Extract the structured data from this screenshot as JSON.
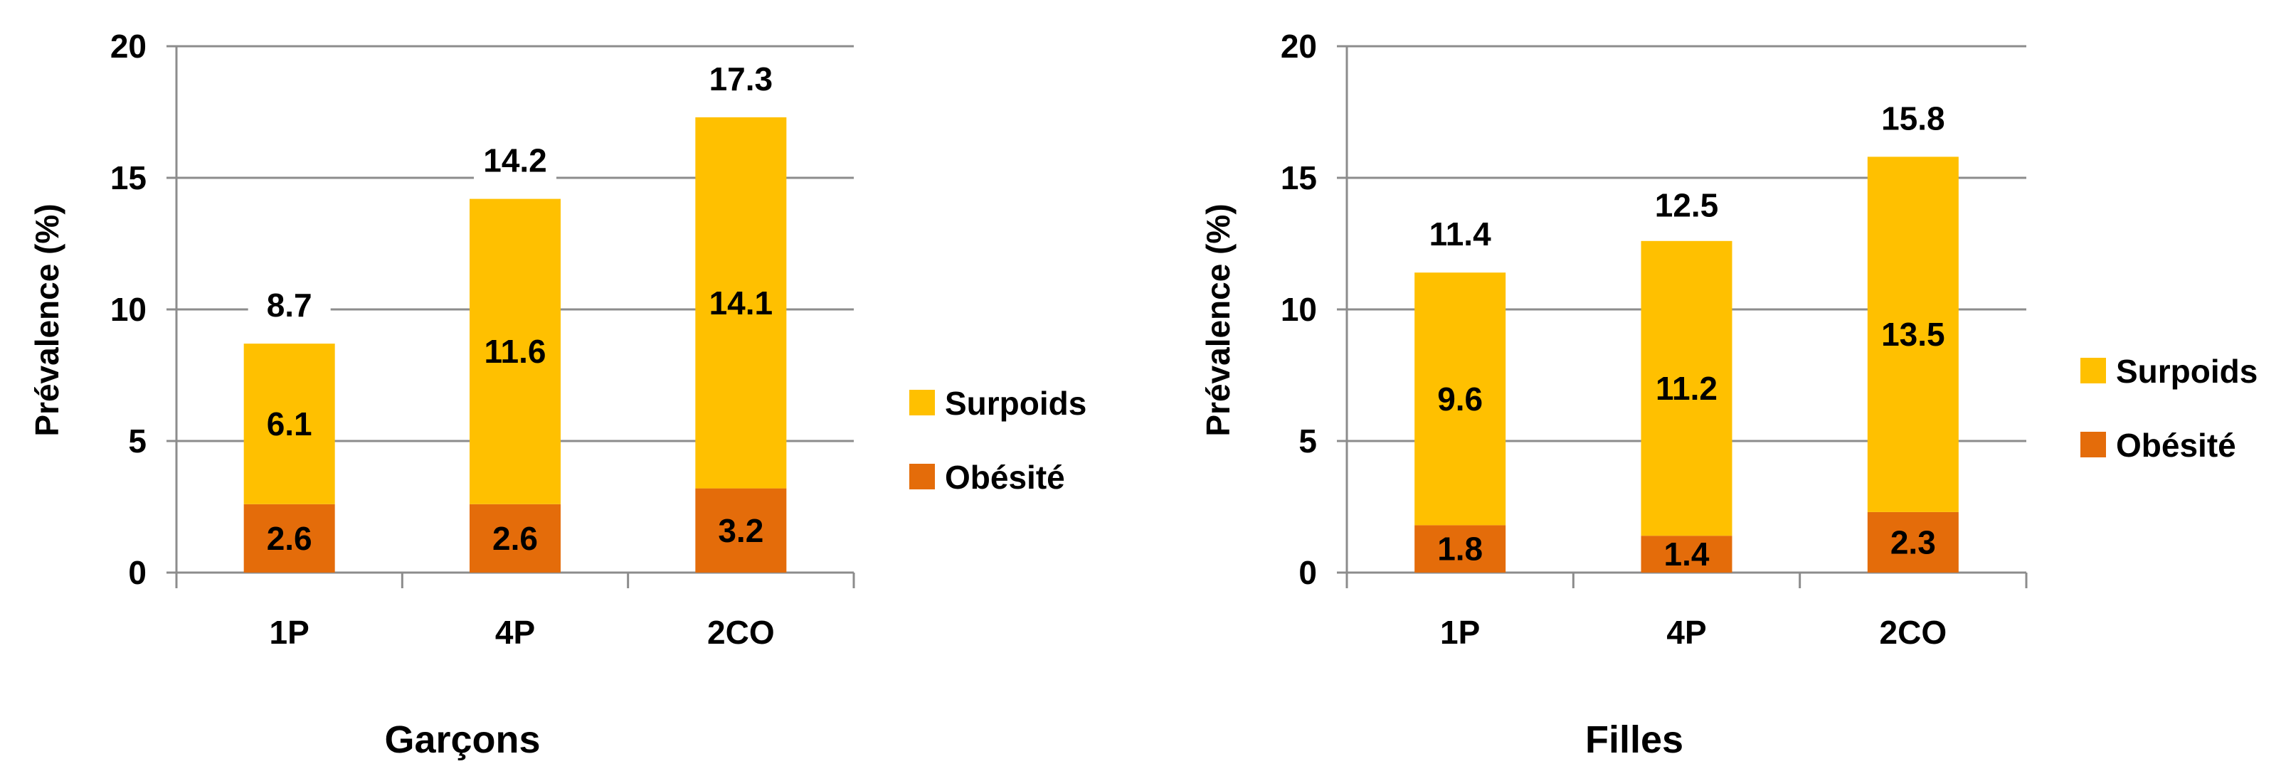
{
  "chart_data": [
    {
      "type": "bar",
      "stacked": true,
      "title": "Garçons",
      "ylabel": "Prévalence (%)",
      "xlabel": "",
      "categories": [
        "1P",
        "4P",
        "2CO"
      ],
      "ylim": [
        0,
        20
      ],
      "yticks": [
        0,
        5,
        10,
        15,
        20
      ],
      "grid": true,
      "legend": "right",
      "series": [
        {
          "name": "Obésité",
          "values": [
            2.6,
            2.6,
            3.2
          ],
          "color": "#E46C0A"
        },
        {
          "name": "Surpoids",
          "values": [
            6.1,
            11.6,
            14.1
          ],
          "color": "#FFC000"
        }
      ],
      "series_labels": [
        [
          "2.6",
          "2.6",
          "3.2"
        ],
        [
          "6.1",
          "11.6",
          "14.1"
        ]
      ],
      "totals": [
        8.7,
        14.2,
        17.3
      ],
      "total_labels": [
        "8.7",
        "14.2",
        "17.3"
      ]
    },
    {
      "type": "bar",
      "stacked": true,
      "title": "Filles",
      "ylabel": "Prévalence (%)",
      "xlabel": "",
      "categories": [
        "1P",
        "4P",
        "2CO"
      ],
      "ylim": [
        0,
        20
      ],
      "yticks": [
        0,
        5,
        10,
        15,
        20
      ],
      "grid": true,
      "legend": "right",
      "series": [
        {
          "name": "Obésité",
          "values": [
            1.8,
            1.4,
            2.3
          ],
          "color": "#E46C0A"
        },
        {
          "name": "Surpoids",
          "values": [
            9.6,
            11.2,
            13.5
          ],
          "color": "#FFC000"
        }
      ],
      "series_labels": [
        [
          "1.8",
          "1.4",
          "2.3"
        ],
        [
          "9.6",
          "11.2",
          "13.5"
        ]
      ],
      "totals": [
        11.4,
        12.5,
        15.8
      ],
      "total_labels": [
        "11.4",
        "12.5",
        "15.8"
      ]
    }
  ],
  "legend_order": [
    "Surpoids",
    "Obésité"
  ],
  "colors": {
    "gridline": "#8C8C8C",
    "axis": "#8C8C8C",
    "text": "#000000"
  }
}
